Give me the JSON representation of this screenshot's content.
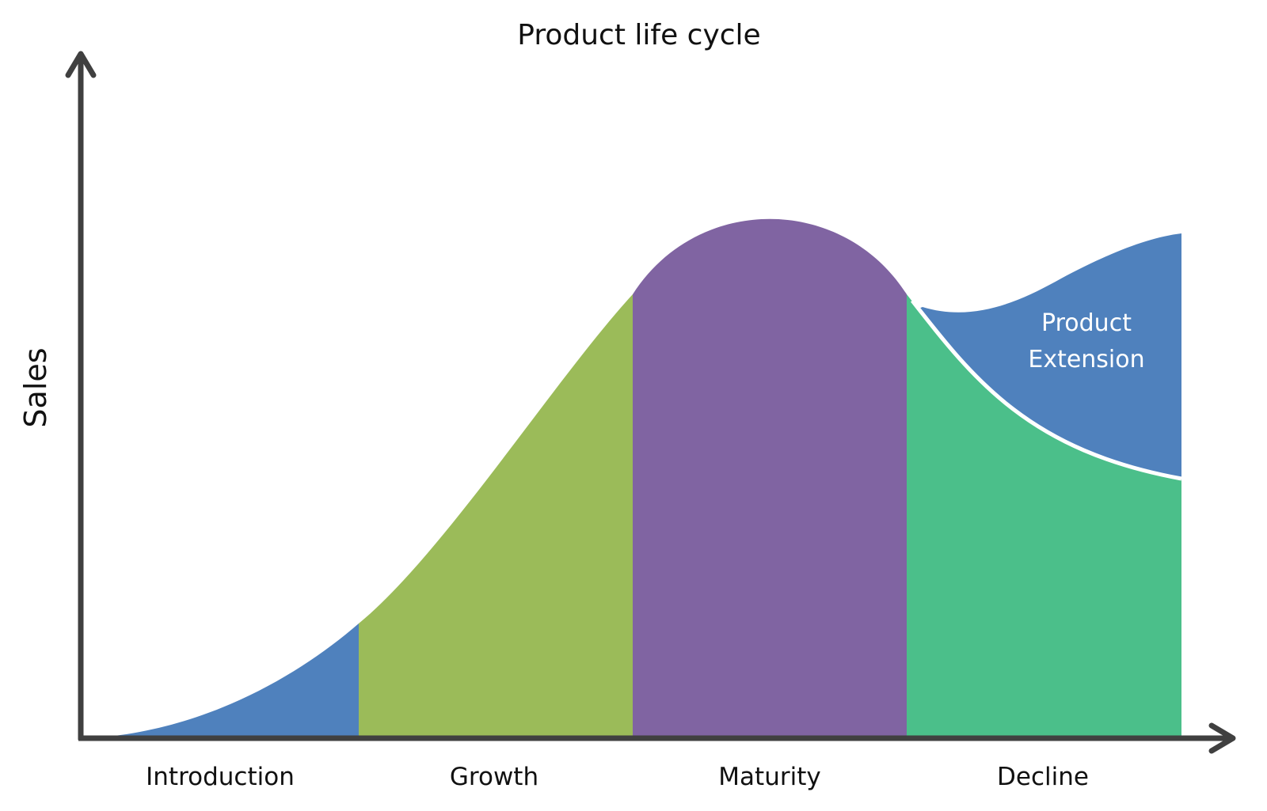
{
  "title": "Product life cycle",
  "y_axis_label": "Sales",
  "stages": [
    {
      "label": "Introduction",
      "color": "#4F81BD"
    },
    {
      "label": "Growth",
      "color": "#9BBB59"
    },
    {
      "label": "Maturity",
      "color": "#8064A2"
    },
    {
      "label": "Decline",
      "color": "#4BBF8A"
    }
  ],
  "extension": {
    "line1": "Product",
    "line2": "Extension",
    "color": "#4F81BD"
  },
  "axis_color": "#404040"
}
